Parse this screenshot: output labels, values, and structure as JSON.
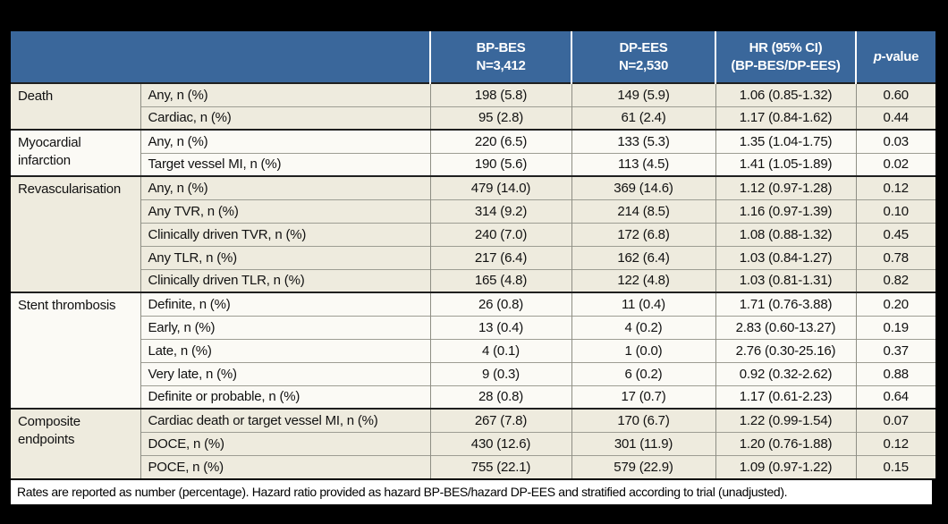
{
  "colors": {
    "header_bg": "#3a679b",
    "header_text": "#ffffff",
    "row_cream": "#eeebde",
    "row_white": "#fbfaf5",
    "border_dark": "#1f1f1f",
    "border_gray": "#8e8e84",
    "footnote_bg": "#ffffff",
    "page_bg": "#000000"
  },
  "table": {
    "header": {
      "bp_bes": {
        "line1": "BP-BES",
        "line2": "N=3,412"
      },
      "dp_ees": {
        "line1": "DP-EES",
        "line2": "N=2,530"
      },
      "hr": {
        "line1": "HR (95% CI)",
        "line2": "(BP-BES/DP-EES)"
      },
      "pvalue": {
        "italic": "p",
        "rest": "-value"
      }
    },
    "groups": [
      {
        "category": "Death",
        "shade": "cream",
        "rows": [
          {
            "endpoint": "Any, n (%)",
            "bp_bes": "198 (5.8)",
            "dp_ees": "149 (5.9)",
            "hr": "1.06 (0.85-1.32)",
            "p": "0.60"
          },
          {
            "endpoint": "Cardiac, n (%)",
            "bp_bes": "95 (2.8)",
            "dp_ees": "61 (2.4)",
            "hr": "1.17 (0.84-1.62)",
            "p": "0.44"
          }
        ]
      },
      {
        "category": "Myocardial infarction",
        "shade": "white",
        "rows": [
          {
            "endpoint": "Any, n (%)",
            "bp_bes": "220 (6.5)",
            "dp_ees": "133 (5.3)",
            "hr": "1.35 (1.04-1.75)",
            "p": "0.03"
          },
          {
            "endpoint": "Target vessel MI, n (%)",
            "bp_bes": "190 (5.6)",
            "dp_ees": "113 (4.5)",
            "hr": "1.41 (1.05-1.89)",
            "p": "0.02"
          }
        ]
      },
      {
        "category": "Revascularisation",
        "shade": "cream",
        "rows": [
          {
            "endpoint": "Any, n (%)",
            "bp_bes": "479 (14.0)",
            "dp_ees": "369 (14.6)",
            "hr": "1.12 (0.97-1.28)",
            "p": "0.12"
          },
          {
            "endpoint": "Any TVR, n (%)",
            "bp_bes": "314 (9.2)",
            "dp_ees": "214 (8.5)",
            "hr": "1.16 (0.97-1.39)",
            "p": "0.10"
          },
          {
            "endpoint": "Clinically driven TVR, n (%)",
            "bp_bes": "240 (7.0)",
            "dp_ees": "172 (6.8)",
            "hr": "1.08 (0.88-1.32)",
            "p": "0.45"
          },
          {
            "endpoint": "Any TLR, n (%)",
            "bp_bes": "217 (6.4)",
            "dp_ees": "162 (6.4)",
            "hr": "1.03 (0.84-1.27)",
            "p": "0.78"
          },
          {
            "endpoint": "Clinically driven TLR, n (%)",
            "bp_bes": "165 (4.8)",
            "dp_ees": "122 (4.8)",
            "hr": "1.03 (0.81-1.31)",
            "p": "0.82"
          }
        ]
      },
      {
        "category": "Stent thrombosis",
        "shade": "white",
        "rows": [
          {
            "endpoint": "Definite, n (%)",
            "bp_bes": "26 (0.8)",
            "dp_ees": "11 (0.4)",
            "hr": "1.71 (0.76-3.88)",
            "p": "0.20"
          },
          {
            "endpoint": "Early, n (%)",
            "bp_bes": "13 (0.4)",
            "dp_ees": "4 (0.2)",
            "hr": "2.83 (0.60-13.27)",
            "p": "0.19"
          },
          {
            "endpoint": "Late, n (%)",
            "bp_bes": "4 (0.1)",
            "dp_ees": "1 (0.0)",
            "hr": "2.76 (0.30-25.16)",
            "p": "0.37"
          },
          {
            "endpoint": "Very late, n (%)",
            "bp_bes": "9 (0.3)",
            "dp_ees": "6 (0.2)",
            "hr": "0.92 (0.32-2.62)",
            "p": "0.88"
          },
          {
            "endpoint": "Definite or probable, n (%)",
            "bp_bes": "28 (0.8)",
            "dp_ees": "17 (0.7)",
            "hr": "1.17 (0.61-2.23)",
            "p": "0.64"
          }
        ]
      },
      {
        "category": "Composite endpoints",
        "shade": "cream",
        "rows": [
          {
            "endpoint": "Cardiac death or target vessel MI, n (%)",
            "bp_bes": "267 (7.8)",
            "dp_ees": "170 (6.7)",
            "hr": "1.22 (0.99-1.54)",
            "p": "0.07"
          },
          {
            "endpoint": "DOCE, n (%)",
            "bp_bes": "430 (12.6)",
            "dp_ees": "301 (11.9)",
            "hr": "1.20 (0.76-1.88)",
            "p": "0.12"
          },
          {
            "endpoint": "POCE, n (%)",
            "bp_bes": "755 (22.1)",
            "dp_ees": "579 (22.9)",
            "hr": "1.09 (0.97-1.22)",
            "p": "0.15"
          }
        ]
      }
    ],
    "footnote": "Rates are reported as number (percentage). Hazard ratio provided as hazard BP-BES/hazard DP-EES and stratified according to trial (unadjusted)."
  }
}
